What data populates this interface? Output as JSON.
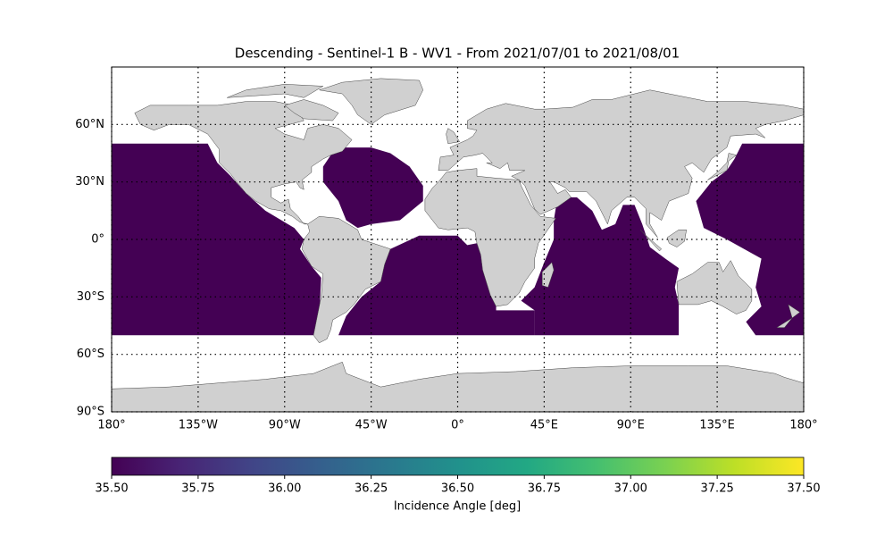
{
  "title": "Descending - Sentinel-1 B - WV1 - From 2021/07/01 to 2021/08/01",
  "map": {
    "lonlim": [
      -180,
      180
    ],
    "latlim": [
      -90,
      90
    ],
    "coverage_color": "#440154",
    "lonticks": [
      {
        "value": -180,
        "label": "180°"
      },
      {
        "value": -135,
        "label": "135°W"
      },
      {
        "value": -90,
        "label": "90°W"
      },
      {
        "value": -45,
        "label": "45°W"
      },
      {
        "value": 0,
        "label": "0°"
      },
      {
        "value": 45,
        "label": "45°E"
      },
      {
        "value": 90,
        "label": "90°E"
      },
      {
        "value": 135,
        "label": "135°E"
      },
      {
        "value": 180,
        "label": "180°"
      }
    ],
    "latticks": [
      {
        "value": -90,
        "label": "90°S"
      },
      {
        "value": -60,
        "label": "60°S"
      },
      {
        "value": -30,
        "label": "30°S"
      },
      {
        "value": 0,
        "label": "0°"
      },
      {
        "value": 30,
        "label": "30°N"
      },
      {
        "value": 60,
        "label": "60°N"
      }
    ]
  },
  "colorbar": {
    "label": "Incidence Angle [deg]",
    "lim": [
      35.5,
      37.5
    ],
    "ticks": [
      {
        "value": 35.5,
        "label": "35.50"
      },
      {
        "value": 35.75,
        "label": "35.75"
      },
      {
        "value": 36,
        "label": "36.00"
      },
      {
        "value": 36.25,
        "label": "36.25"
      },
      {
        "value": 36.5,
        "label": "36.50"
      },
      {
        "value": 36.75,
        "label": "36.75"
      },
      {
        "value": 37,
        "label": "37.00"
      },
      {
        "value": 37.25,
        "label": "37.25"
      },
      {
        "value": 37.5,
        "label": "37.50"
      }
    ]
  }
}
